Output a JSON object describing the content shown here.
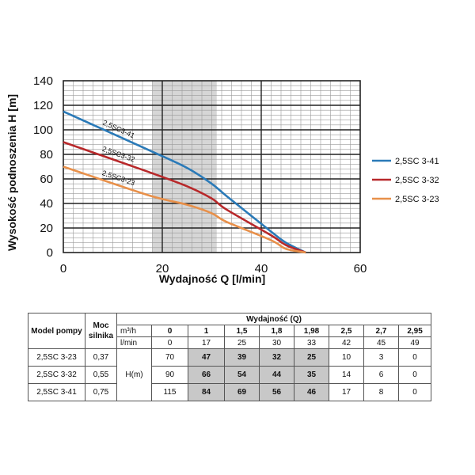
{
  "chart_data": {
    "type": "line",
    "xlabel": "Wydajność Q [l/min]",
    "ylabel": "Wysokość podnoszenia H [m]",
    "xlim": [
      0,
      60
    ],
    "ylim": [
      0,
      140
    ],
    "x_ticks": [
      "0",
      "20",
      "40",
      "60"
    ],
    "y_ticks": [
      "0",
      "20",
      "40",
      "60",
      "80",
      "100",
      "120",
      "140"
    ],
    "grid": true,
    "shaded_range": [
      18,
      31
    ],
    "legend_position": "right",
    "series": [
      {
        "name": "2,5SC 3-41",
        "label": "2,5SC3-41",
        "color": "#2a7ab8",
        "x": [
          0,
          17,
          25,
          30,
          33,
          42,
          45,
          49
        ],
        "y": [
          115,
          84,
          69,
          56,
          46,
          17,
          8,
          0
        ]
      },
      {
        "name": "2,5SC 3-32",
        "label": "2,5SC3-32",
        "color": "#b8282a",
        "x": [
          0,
          17,
          25,
          30,
          33,
          42,
          45,
          49
        ],
        "y": [
          90,
          66,
          54,
          44,
          35,
          14,
          6,
          0
        ]
      },
      {
        "name": "2,5SC 3-23",
        "label": "2,5SC3-23",
        "color": "#e8904a",
        "x": [
          0,
          17,
          25,
          30,
          33,
          42,
          45,
          49
        ],
        "y": [
          70,
          47,
          39,
          32,
          25,
          10,
          3,
          0
        ]
      }
    ]
  },
  "table": {
    "col_model": "Model pompy",
    "col_power": "Moc silnika",
    "col_flow": "Wydajność (Q)",
    "unit_m3h": "m³/h",
    "unit_lmin": "l/min",
    "h_label": "H(m)",
    "m3h": [
      "0",
      "1",
      "1,5",
      "1,8",
      "1,98",
      "2,5",
      "2,7",
      "2,95"
    ],
    "lmin": [
      "0",
      "17",
      "25",
      "30",
      "33",
      "42",
      "45",
      "49"
    ],
    "rows": [
      {
        "model": "2,5SC 3-23",
        "power": "0,37",
        "h": [
          "70",
          "47",
          "39",
          "32",
          "25",
          "10",
          "3",
          "0"
        ]
      },
      {
        "model": "2,5SC 3-32",
        "power": "0,55",
        "h": [
          "90",
          "66",
          "54",
          "44",
          "35",
          "14",
          "6",
          "0"
        ]
      },
      {
        "model": "2,5SC 3-41",
        "power": "0,75",
        "h": [
          "115",
          "84",
          "69",
          "56",
          "46",
          "17",
          "8",
          "0"
        ]
      }
    ]
  }
}
